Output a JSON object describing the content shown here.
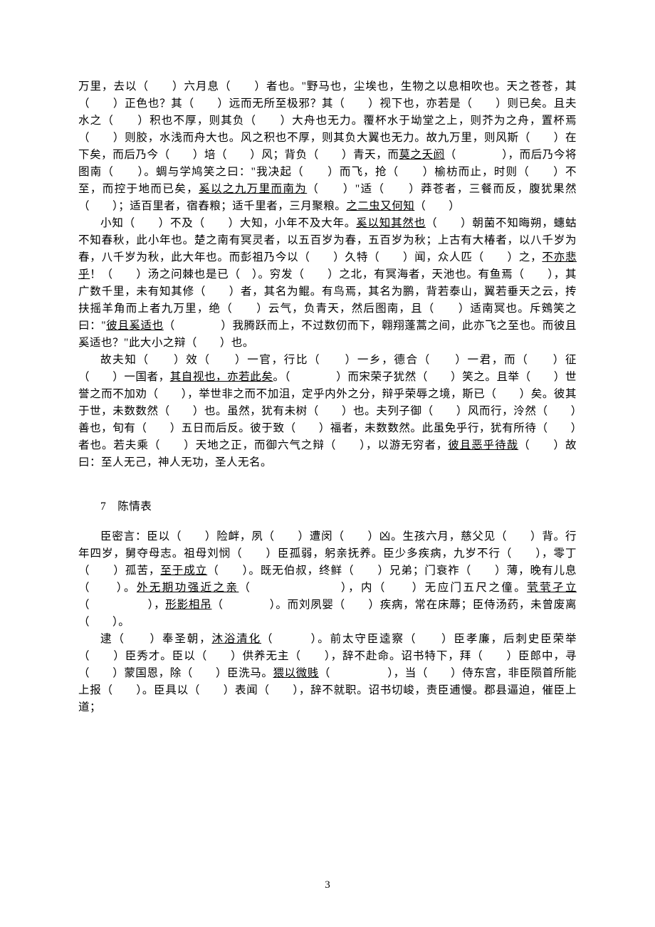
{
  "document": {
    "page_number": "3",
    "section_number": "7",
    "section_title": "陈情表",
    "text_color": "#000000",
    "background_color": "#ffffff",
    "font_size": 15.5,
    "line_height": 24
  },
  "paragraphs": {
    "p1": {
      "t1": "万里，去以（　　）六月息（　　）者也。\"野马也，尘埃也，生物之以息相吹也。天之苍苍，其（　　）正色也？其（　　）远而无所至极邪？其（　　）视下也，亦若是（　　）则已矣。且夫水之（　　）积也不厚，则其负（　　）大舟也无力。覆杯水于坳堂之上，则芥为之舟，置杯焉（　　）则胶，水浅而舟大也。风之积也不厚，则其负大翼也无力。故九万里，则风斯（　　）在下矣，而后乃今（　　）培（　　）风；背负（　　）青天，而",
      "u1": "莫之夭阏",
      "t2": "（　　　　），而后乃今将图南（　　）。蜩与学鸠笑之曰：\"我决起（　　）而飞，抢（　　）榆枋而止，时则（　　）不至，而控于地而已矣，",
      "u2": "奚以之九万里而南为",
      "t3": "（　　）\"适（　　）莽苍者，三餐而反，腹犹果然（　　）；适百里者，宿舂粮；适千里者，三月聚粮。",
      "u3": "之二虫又何知",
      "t4": "（　　）"
    },
    "p2": {
      "t1": "小知（　　）不及（　　）大知，小年不及大年。",
      "u1": "奚以知其然也",
      "t2": "（　　）朝菌不知晦朔，蟪蛄不知春秋，此小年也。楚之南有冥灵者，以五百岁为春，五百岁为秋；上古有大椿者，以八千岁为春，八千岁为秋，此大年也。而彭祖乃今以（　　）久特（　　）闻，众人匹（　　）之，",
      "u2": "不亦悲乎",
      "t3": "！（　　）汤之问棘也是已（　）。穷发（　　）之北，有冥海者，天池也。有鱼焉（　　），其广数千里，未有知其修（　　）者，其名为鲲。有鸟焉，其名为鹏，背若泰山，翼若垂天之云，抟扶摇羊角而上者九万里，绝（　　）云气，负青天，然后图南，且（　　）适南冥也。斥鴳笑之曰：\"",
      "u3": "彼且奚适也",
      "t4": "（　　　　）我腾跃而上，不过数仞而下，翱翔蓬蒿之间，此亦飞之至也。而彼且奚适也？\"此大小之辩（　　）也。"
    },
    "p3": {
      "t1": "故夫知（　　）效（　　）一官，行比（　　）一乡，德合（　　）一君，而（　　）征（　　）一国者，",
      "u1": "其自视也，亦若此矣",
      "t2": "。（　　　　）而宋荣子犹然（　　）笑之。且举（　　）世誉之而不加劝（　　），举世非之而不加沮，定乎内外之分，辩乎荣辱之境，斯已（　　）矣。彼其于世，未数数然（　　）也。虽然，犹有未树（　　）也。夫列子御（　　）风而行，泠然（　　）善也，旬有（　　）五日而后反。彼于致（　　）福者，未数数然。此虽免乎行，犹有所待（　　）者也。若夫乘（　　）天地之正，而御六气之辩（　　），以游无穷者，",
      "u2": "彼且恶乎待哉",
      "t3": "（　　）故曰：至人无己，神人无功，圣人无名。"
    },
    "p4": {
      "t1": "臣密言：臣以（　　）险衅，夙（　　）遭闵（　　）凶。生孩六月，慈父见（　　）背。行年四岁，舅夺母志。祖母刘悯（　　）臣孤弱，躬亲抚养。臣少多疾病，九岁不行（　　），零丁（　　）孤苦，",
      "u1": "至于成立",
      "t2": "（　　）。既无伯叔，终鲜（　　）兄弟；门衰祚（　　）薄，晚有儿息（　　）。",
      "u2": "外无期功强近之亲",
      "t3": "（　　　　　　　），内（　　）无应门五尺之僮。",
      "u3": "茕茕孑立",
      "t4": "（　　　　　），",
      "u4": "形影相吊",
      "t5": "（　　　　）。而刘夙婴（　　）疾病，常在床蓐；臣侍汤药，未曾废离（　　）。"
    },
    "p5": {
      "t1": "逮（　　）奉圣朝，",
      "u1": "沐浴清化",
      "t2": "（　　　）。前太守臣逵察（　　）臣孝廉，后刺史臣荣举（　　）臣秀才。臣以（　　）供养无主（　　），辞不赴命。诏书特下，拜（　　）臣郎中，寻（　　）蒙国恩，除（　　）臣洗马。",
      "u2": "猥以微贱",
      "t3": "（　　　　　），当（　　）侍东宫，非臣陨首所能上报（　　）。臣具以（　　）表闻（　　），辞不就职。诏书切峻，责臣逋慢。郡县逼迫，催臣上道；"
    }
  }
}
